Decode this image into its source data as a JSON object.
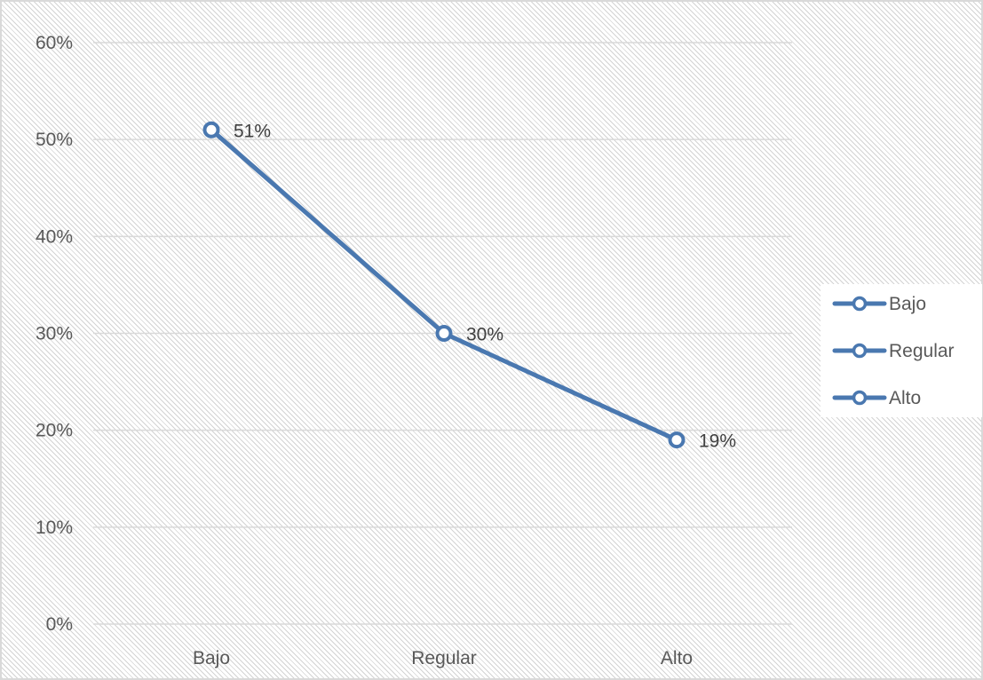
{
  "chart_data": {
    "type": "line",
    "categories": [
      "Bajo",
      "Regular",
      "Alto"
    ],
    "series": [
      {
        "values": [
          51,
          30,
          19
        ]
      }
    ],
    "data_labels": [
      "51%",
      "30%",
      "19%"
    ],
    "y_ticks": [
      0,
      10,
      20,
      30,
      40,
      50,
      60
    ],
    "y_tick_labels": [
      "0%",
      "10%",
      "20%",
      "30%",
      "40%",
      "50%",
      "60%"
    ],
    "ylim": [
      0,
      60
    ],
    "grid": true,
    "legend": {
      "position": "right",
      "entries": [
        "Bajo",
        "Regular",
        "Alto"
      ]
    },
    "title": "",
    "xlabel": "",
    "ylabel": "",
    "colors": {
      "series": "#4a78b0",
      "marker_fill": "#ffffff"
    },
    "marker": "circle"
  }
}
